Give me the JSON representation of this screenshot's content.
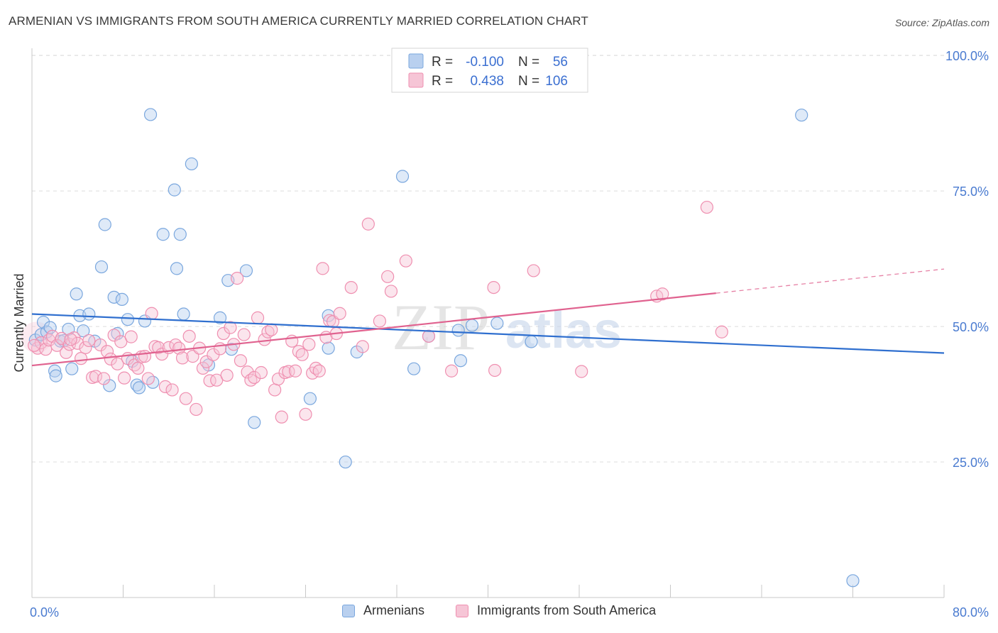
{
  "title": "ARMENIAN VS IMMIGRANTS FROM SOUTH AMERICA CURRENTLY MARRIED CORRELATION CHART",
  "source": "Source: ZipAtlas.com",
  "watermark": {
    "zip": "ZIP",
    "atlas": "atlas"
  },
  "colors": {
    "blue": "#7aa7de",
    "blue_fill": "#b9d0ef",
    "blue_line": "#2f6fcf",
    "pink": "#ef8fb0",
    "pink_fill": "#f6c5d6",
    "pink_line": "#e0628f",
    "tick_label": "#4a7bd0",
    "grid": "#dddddd"
  },
  "legend_top": {
    "rows": [
      {
        "r_label": "R =",
        "r_value": "-0.100",
        "n_label": "N =",
        "n_value": "56",
        "series": "blue"
      },
      {
        "r_label": "R =",
        "r_value": "0.438",
        "n_label": "N =",
        "n_value": "106",
        "series": "pink"
      }
    ]
  },
  "legend_bottom": [
    {
      "label": "Armenians",
      "series": "blue"
    },
    {
      "label": "Immigrants from South America",
      "series": "pink"
    }
  ],
  "chart_data": {
    "type": "scatter",
    "title": "ARMENIAN VS IMMIGRANTS FROM SOUTH AMERICA CURRENTLY MARRIED CORRELATION CHART",
    "xlabel": "",
    "ylabel": "Currently Married",
    "xlim": [
      0,
      80
    ],
    "ylim": [
      0,
      105
    ],
    "x_tick_labels": [
      "0.0%",
      "80.0%"
    ],
    "y_ticks": [
      25,
      50,
      75,
      100
    ],
    "y_tick_labels": [
      "25.0%",
      "50.0%",
      "75.0%",
      "100.0%"
    ],
    "grid": true,
    "legend_position": "top-center",
    "series": [
      {
        "name": "Armenians",
        "color": "#7aa7de",
        "r": -0.1,
        "n": 56,
        "trend": {
          "x": [
            0,
            80
          ],
          "y": [
            52.3,
            45.1
          ],
          "dashed_from": null
        },
        "points": [
          [
            0.3,
            47.5
          ],
          [
            0.8,
            48.5
          ],
          [
            1.0,
            50.8
          ],
          [
            1.3,
            49.0
          ],
          [
            1.6,
            49.8
          ],
          [
            2.0,
            41.8
          ],
          [
            2.1,
            40.9
          ],
          [
            2.5,
            47.3
          ],
          [
            2.8,
            47.4
          ],
          [
            3.2,
            49.5
          ],
          [
            3.5,
            42.2
          ],
          [
            3.9,
            56.0
          ],
          [
            4.2,
            52.0
          ],
          [
            4.5,
            49.2
          ],
          [
            5.0,
            52.3
          ],
          [
            5.5,
            47.3
          ],
          [
            6.1,
            61.0
          ],
          [
            6.4,
            68.8
          ],
          [
            6.8,
            39.1
          ],
          [
            7.2,
            55.4
          ],
          [
            7.5,
            48.7
          ],
          [
            7.9,
            55.0
          ],
          [
            8.4,
            51.3
          ],
          [
            8.8,
            43.6
          ],
          [
            9.2,
            39.2
          ],
          [
            9.4,
            38.7
          ],
          [
            9.9,
            51.0
          ],
          [
            10.4,
            89.1
          ],
          [
            10.6,
            39.7
          ],
          [
            11.5,
            67.0
          ],
          [
            12.5,
            75.2
          ],
          [
            12.7,
            60.7
          ],
          [
            13.0,
            67.0
          ],
          [
            13.3,
            52.3
          ],
          [
            14.0,
            80.0
          ],
          [
            15.5,
            42.9
          ],
          [
            16.5,
            51.6
          ],
          [
            17.2,
            58.5
          ],
          [
            17.5,
            45.8
          ],
          [
            18.8,
            60.3
          ],
          [
            19.5,
            32.3
          ],
          [
            24.4,
            36.7
          ],
          [
            26.0,
            52.0
          ],
          [
            26.0,
            46.0
          ],
          [
            27.5,
            25.0
          ],
          [
            28.5,
            45.3
          ],
          [
            32.5,
            77.7
          ],
          [
            33.5,
            42.2
          ],
          [
            34.8,
            48.2
          ],
          [
            37.4,
            49.3
          ],
          [
            37.6,
            43.7
          ],
          [
            38.6,
            50.2
          ],
          [
            40.8,
            50.6
          ],
          [
            43.8,
            47.2
          ],
          [
            67.5,
            89.0
          ],
          [
            72.0,
            3.1
          ]
        ]
      },
      {
        "name": "Immigrants from South America",
        "color": "#ef8fb0",
        "r": 0.438,
        "n": 106,
        "trend": {
          "x": [
            0,
            80
          ],
          "y": [
            42.8,
            60.6
          ],
          "dashed_from": 60
        },
        "points": [
          [
            0.5,
            46.0
          ],
          [
            0.8,
            47.0
          ],
          [
            1.2,
            45.8
          ],
          [
            1.5,
            47.5
          ],
          [
            1.8,
            48.2
          ],
          [
            2.2,
            46.5
          ],
          [
            2.6,
            47.8
          ],
          [
            3.0,
            45.2
          ],
          [
            3.3,
            46.7
          ],
          [
            3.7,
            47.9
          ],
          [
            4.0,
            46.9
          ],
          [
            4.3,
            44.1
          ],
          [
            4.7,
            46.1
          ],
          [
            5.0,
            47.4
          ],
          [
            5.3,
            40.6
          ],
          [
            5.6,
            40.8
          ],
          [
            6.0,
            46.6
          ],
          [
            6.3,
            40.4
          ],
          [
            6.6,
            45.4
          ],
          [
            6.9,
            44.0
          ],
          [
            7.2,
            48.4
          ],
          [
            7.5,
            43.1
          ],
          [
            7.8,
            47.2
          ],
          [
            8.1,
            40.5
          ],
          [
            8.4,
            44.1
          ],
          [
            8.7,
            48.1
          ],
          [
            9.0,
            42.9
          ],
          [
            9.3,
            42.3
          ],
          [
            9.6,
            44.4
          ],
          [
            9.9,
            44.5
          ],
          [
            10.2,
            40.4
          ],
          [
            10.5,
            52.4
          ],
          [
            10.8,
            46.3
          ],
          [
            11.1,
            46.1
          ],
          [
            11.4,
            44.9
          ],
          [
            11.7,
            38.9
          ],
          [
            12.0,
            46.1
          ],
          [
            12.3,
            38.3
          ],
          [
            12.6,
            46.6
          ],
          [
            12.9,
            46.0
          ],
          [
            13.2,
            44.2
          ],
          [
            13.5,
            36.7
          ],
          [
            13.8,
            48.2
          ],
          [
            14.1,
            44.5
          ],
          [
            14.4,
            34.7
          ],
          [
            14.7,
            46.0
          ],
          [
            15.0,
            42.3
          ],
          [
            15.3,
            43.5
          ],
          [
            15.6,
            40.0
          ],
          [
            15.9,
            44.8
          ],
          [
            16.2,
            40.1
          ],
          [
            16.5,
            45.9
          ],
          [
            16.8,
            48.7
          ],
          [
            17.1,
            41.0
          ],
          [
            17.4,
            49.8
          ],
          [
            17.7,
            46.7
          ],
          [
            18.0,
            58.9
          ],
          [
            18.3,
            43.7
          ],
          [
            18.6,
            48.5
          ],
          [
            18.9,
            41.6
          ],
          [
            19.2,
            40.1
          ],
          [
            19.5,
            40.6
          ],
          [
            19.8,
            51.6
          ],
          [
            20.1,
            41.5
          ],
          [
            20.4,
            47.6
          ],
          [
            20.7,
            49.0
          ],
          [
            21.0,
            49.4
          ],
          [
            21.3,
            38.3
          ],
          [
            21.6,
            40.3
          ],
          [
            21.9,
            33.3
          ],
          [
            22.2,
            41.5
          ],
          [
            22.5,
            41.7
          ],
          [
            22.8,
            47.3
          ],
          [
            23.1,
            41.8
          ],
          [
            23.4,
            45.4
          ],
          [
            23.7,
            44.8
          ],
          [
            24.0,
            33.8
          ],
          [
            24.3,
            46.7
          ],
          [
            24.6,
            41.4
          ],
          [
            24.9,
            42.3
          ],
          [
            25.2,
            41.8
          ],
          [
            25.5,
            60.7
          ],
          [
            25.8,
            48.0
          ],
          [
            26.1,
            51.1
          ],
          [
            26.4,
            50.9
          ],
          [
            26.7,
            48.7
          ],
          [
            27.0,
            52.4
          ],
          [
            28.0,
            57.2
          ],
          [
            29.0,
            46.3
          ],
          [
            29.5,
            68.9
          ],
          [
            30.5,
            51.0
          ],
          [
            31.2,
            59.2
          ],
          [
            31.5,
            56.5
          ],
          [
            32.8,
            62.1
          ],
          [
            34.8,
            48.2
          ],
          [
            36.8,
            41.8
          ],
          [
            40.5,
            57.2
          ],
          [
            40.6,
            41.9
          ],
          [
            44.0,
            60.3
          ],
          [
            48.2,
            41.7
          ],
          [
            54.8,
            55.6
          ],
          [
            55.3,
            56.0
          ],
          [
            59.2,
            72.0
          ],
          [
            60.5,
            49.0
          ],
          [
            0.2,
            46.5
          ],
          [
            3.4,
            47.6
          ]
        ]
      }
    ]
  }
}
